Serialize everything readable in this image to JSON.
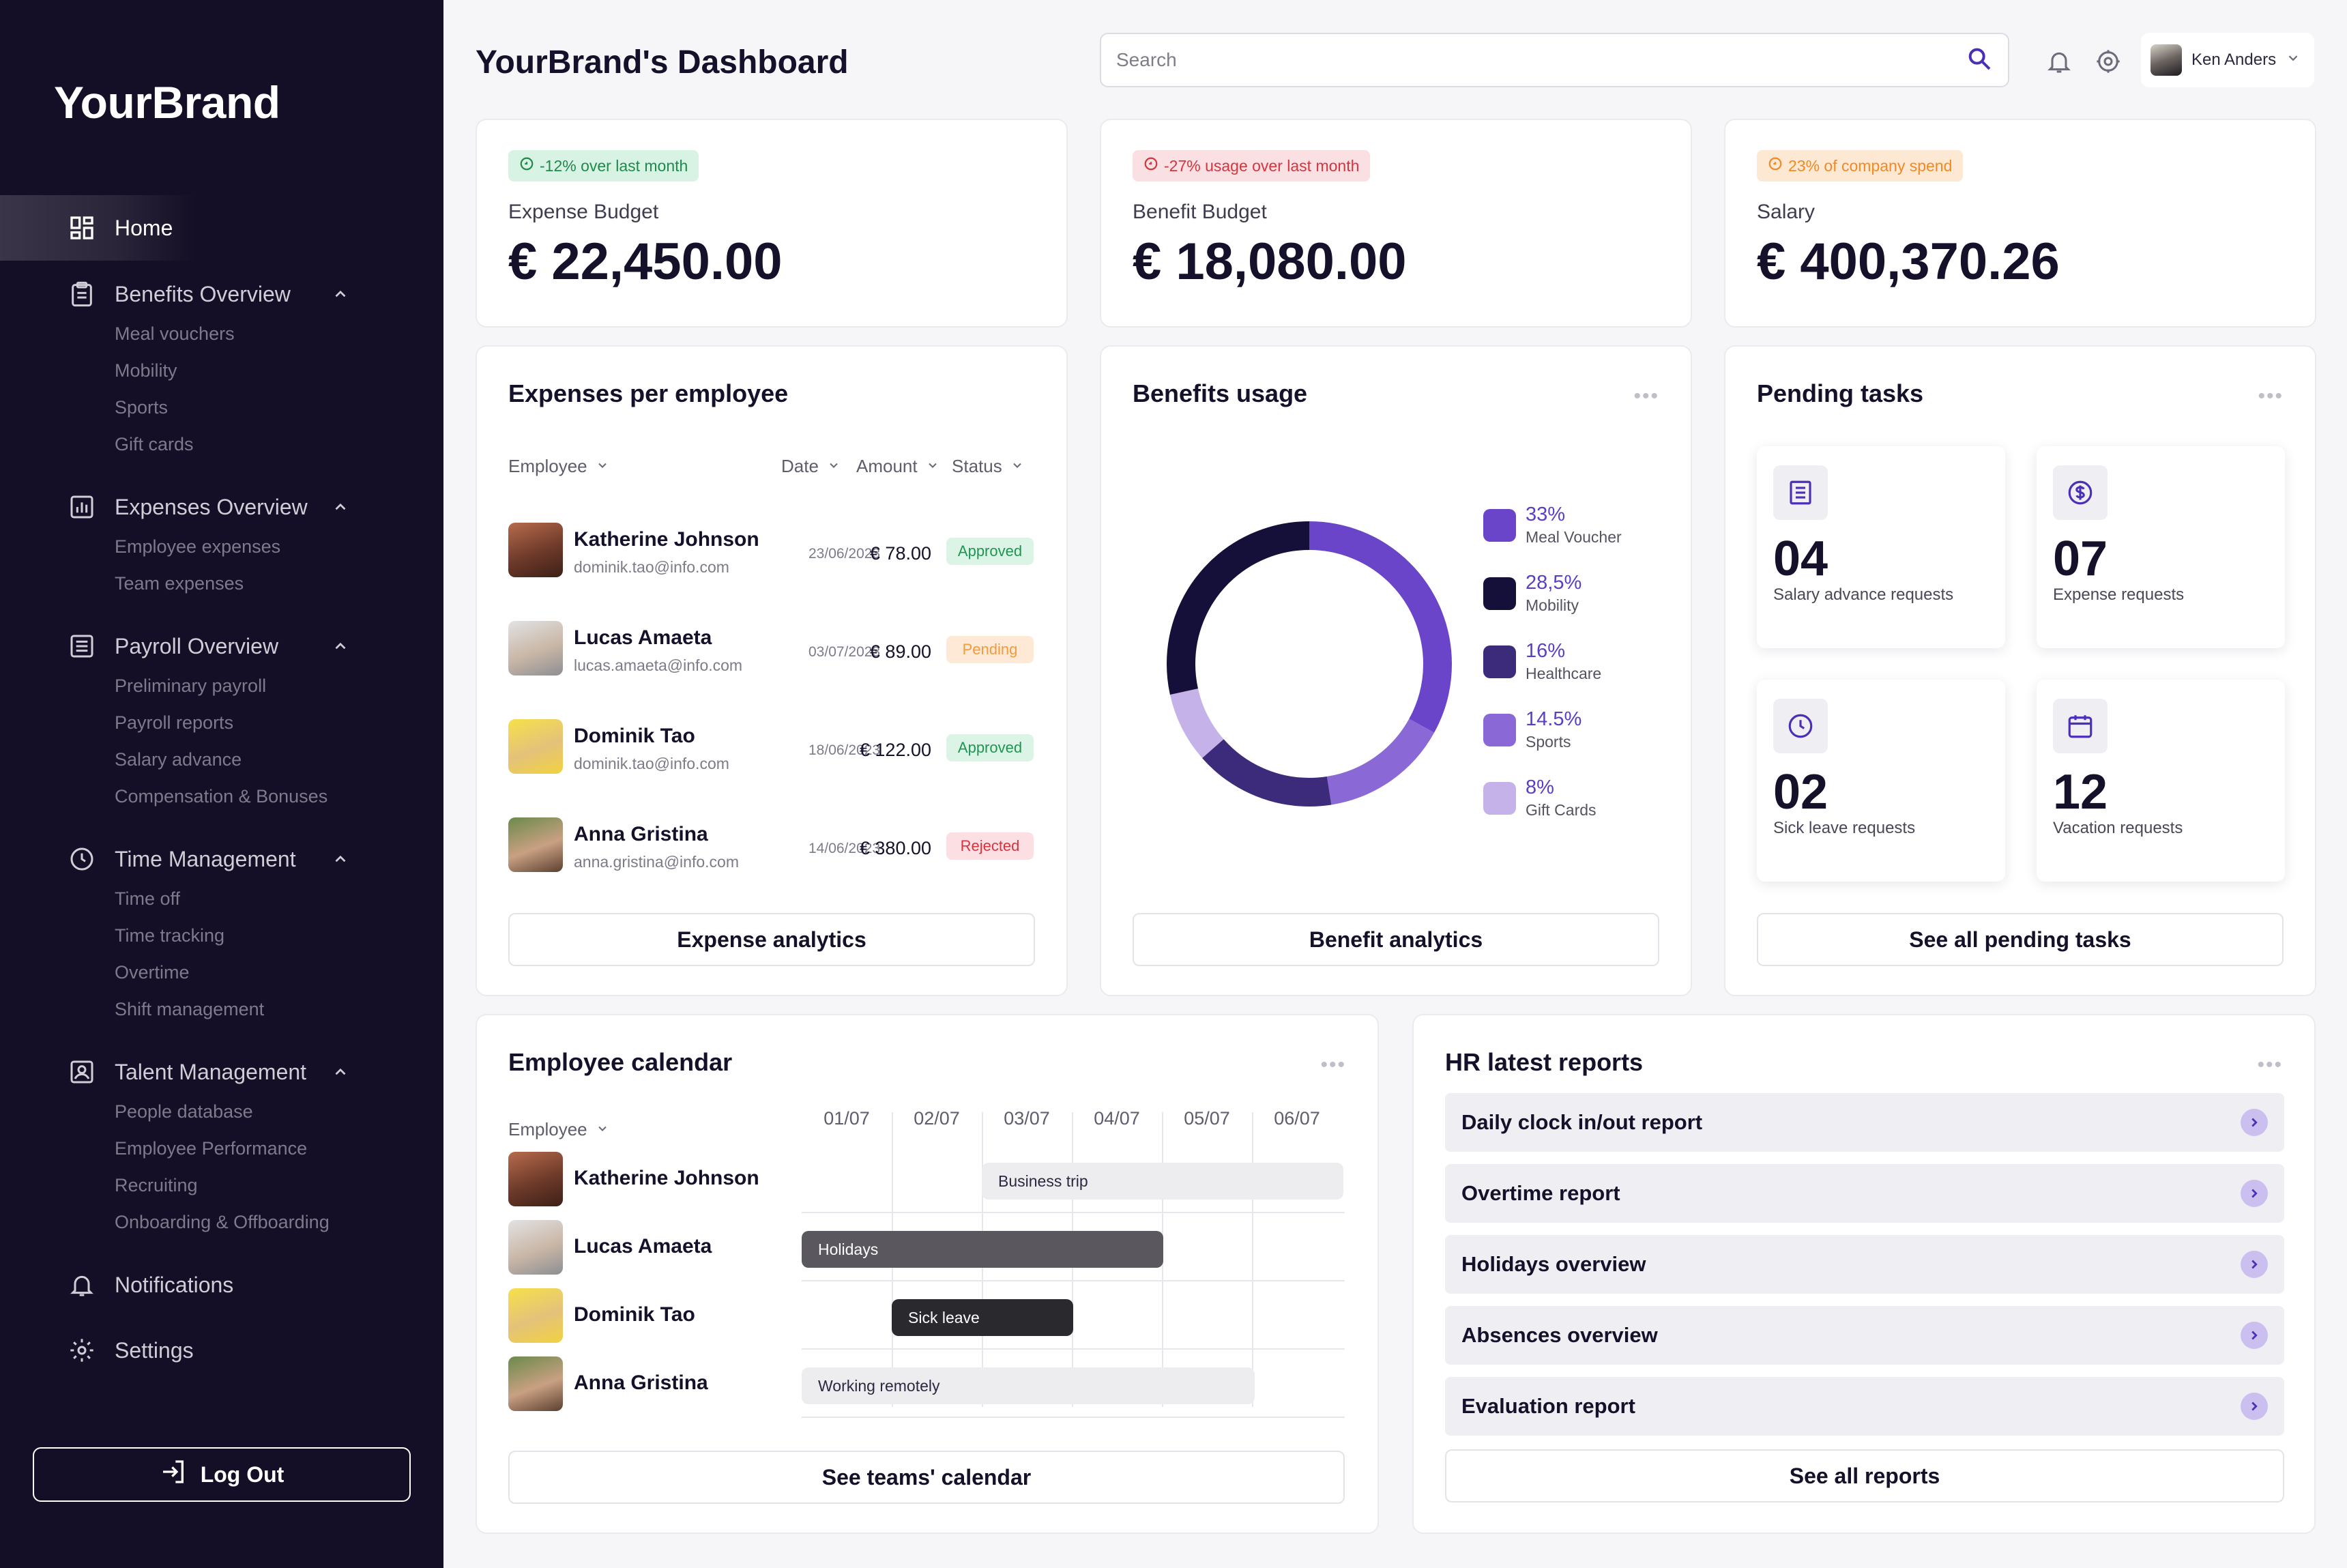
{
  "brand": "YourBrand",
  "nav": {
    "home": "Home",
    "sections": [
      {
        "label": "Benefits Overview",
        "icon": "clipboard-icon",
        "items": [
          "Meal vouchers",
          "Mobility",
          "Sports",
          "Gift cards"
        ]
      },
      {
        "label": "Expenses Overview",
        "icon": "bar-chart-icon",
        "items": [
          "Employee expenses",
          "Team expenses"
        ]
      },
      {
        "label": "Payroll Overview",
        "icon": "list-doc-icon",
        "items": [
          "Preliminary payroll",
          "Payroll reports",
          "Salary advance",
          "Compensation & Bonuses"
        ]
      },
      {
        "label": "Time Management",
        "icon": "clock-icon",
        "items": [
          "Time off",
          "Time tracking",
          "Overtime",
          "Shift management"
        ]
      },
      {
        "label": "Talent Management",
        "icon": "person-card-icon",
        "items": [
          "People database",
          "Employee Performance",
          "Recruiting",
          "Onboarding & Offboarding"
        ]
      }
    ],
    "notifications": "Notifications",
    "settings": "Settings",
    "logout": "Log Out"
  },
  "header": {
    "title": "YourBrand's Dashboard",
    "search_placeholder": "Search",
    "user_name": "Ken Anders"
  },
  "kpis": [
    {
      "badge": "-12% over last month",
      "label": "Expense Budget",
      "value": "€ 22,450.00",
      "tone": "green"
    },
    {
      "badge": "-27% usage over last month",
      "label": "Benefit Budget",
      "value": "€ 18,080.00",
      "tone": "red"
    },
    {
      "badge": "23% of company spend",
      "label": "Salary",
      "value": "€ 400,370.26",
      "tone": "orange"
    }
  ],
  "expenses": {
    "title": "Expenses per employee",
    "columns": {
      "employee": "Employee",
      "date": "Date",
      "amount": "Amount",
      "status": "Status"
    },
    "rows": [
      {
        "name": "Katherine Johnson",
        "email": "dominik.tao@info.com",
        "date": "23/06/2023",
        "amount": "€ 78.00",
        "status": "Approved"
      },
      {
        "name": "Lucas Amaeta",
        "email": "lucas.amaeta@info.com",
        "date": "03/07/2023",
        "amount": "€ 89.00",
        "status": "Pending"
      },
      {
        "name": "Dominik Tao",
        "email": "dominik.tao@info.com",
        "date": "18/06/2023",
        "amount": "€ 122.00",
        "status": "Approved"
      },
      {
        "name": "Anna Gristina",
        "email": "anna.gristina@info.com",
        "date": "14/06/2023",
        "amount": "€ 380.00",
        "status": "Rejected"
      }
    ],
    "button": "Expense analytics"
  },
  "benefits": {
    "title": "Benefits usage",
    "legend": [
      {
        "pct": "33%",
        "name": "Meal Voucher",
        "color": "#6a45c9"
      },
      {
        "pct": "28,5%",
        "name": "Mobility",
        "color": "#15103a"
      },
      {
        "pct": "16%",
        "name": "Healthcare",
        "color": "#3c2a7a"
      },
      {
        "pct": "14.5%",
        "name": "Sports",
        "color": "#8a68d6"
      },
      {
        "pct": "8%",
        "name": "Gift Cards",
        "color": "#c4b2e8"
      }
    ],
    "button": "Benefit analytics"
  },
  "tasks": {
    "title": "Pending tasks",
    "items": [
      {
        "num": "04",
        "label": "Salary advance requests",
        "icon": "document-icon"
      },
      {
        "num": "07",
        "label": "Expense requests",
        "icon": "dollar-icon"
      },
      {
        "num": "02",
        "label": "Sick leave requests",
        "icon": "clock-icon"
      },
      {
        "num": "12",
        "label": "Vacation requests",
        "icon": "calendar-icon"
      }
    ],
    "button": "See all pending tasks"
  },
  "calendar": {
    "title": "Employee calendar",
    "employee_col": "Employee",
    "dates": [
      "01/07",
      "02/07",
      "03/07",
      "04/07",
      "05/07",
      "06/07"
    ],
    "rows": [
      {
        "name": "Katherine Johnson",
        "event": "Business trip"
      },
      {
        "name": "Lucas Amaeta",
        "event": "Holidays"
      },
      {
        "name": "Dominik Tao",
        "event": "Sick leave"
      },
      {
        "name": "Anna Gristina",
        "event": "Working remotely"
      }
    ],
    "button": "See teams' calendar"
  },
  "reports": {
    "title": "HR latest reports",
    "items": [
      "Daily clock in/out report",
      "Overtime report",
      "Holidays overview",
      "Absences overview",
      "Evaluation report"
    ],
    "button": "See all reports"
  }
}
